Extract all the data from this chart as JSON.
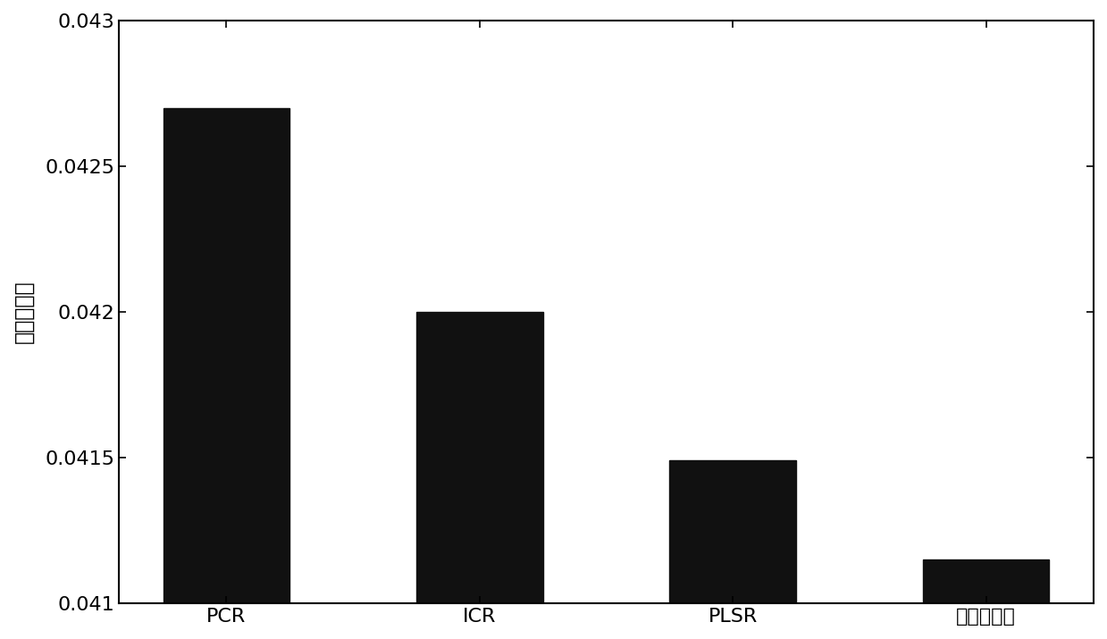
{
  "categories": [
    "PCR",
    "ICR",
    "PLSR",
    "本发明方法"
  ],
  "values": [
    0.0427,
    0.042,
    0.04149,
    0.04115
  ],
  "bar_color": "#111111",
  "ylabel": "均方根误差",
  "ylim": [
    0.041,
    0.043
  ],
  "yticks": [
    0.041,
    0.0415,
    0.042,
    0.0425,
    0.043
  ],
  "ytick_labels": [
    "0.041",
    "0.0415",
    "0.042",
    "0.0425",
    "0.043"
  ],
  "background_color": "#ffffff",
  "bar_width": 0.5,
  "tick_fontsize": 16,
  "label_fontsize": 17
}
